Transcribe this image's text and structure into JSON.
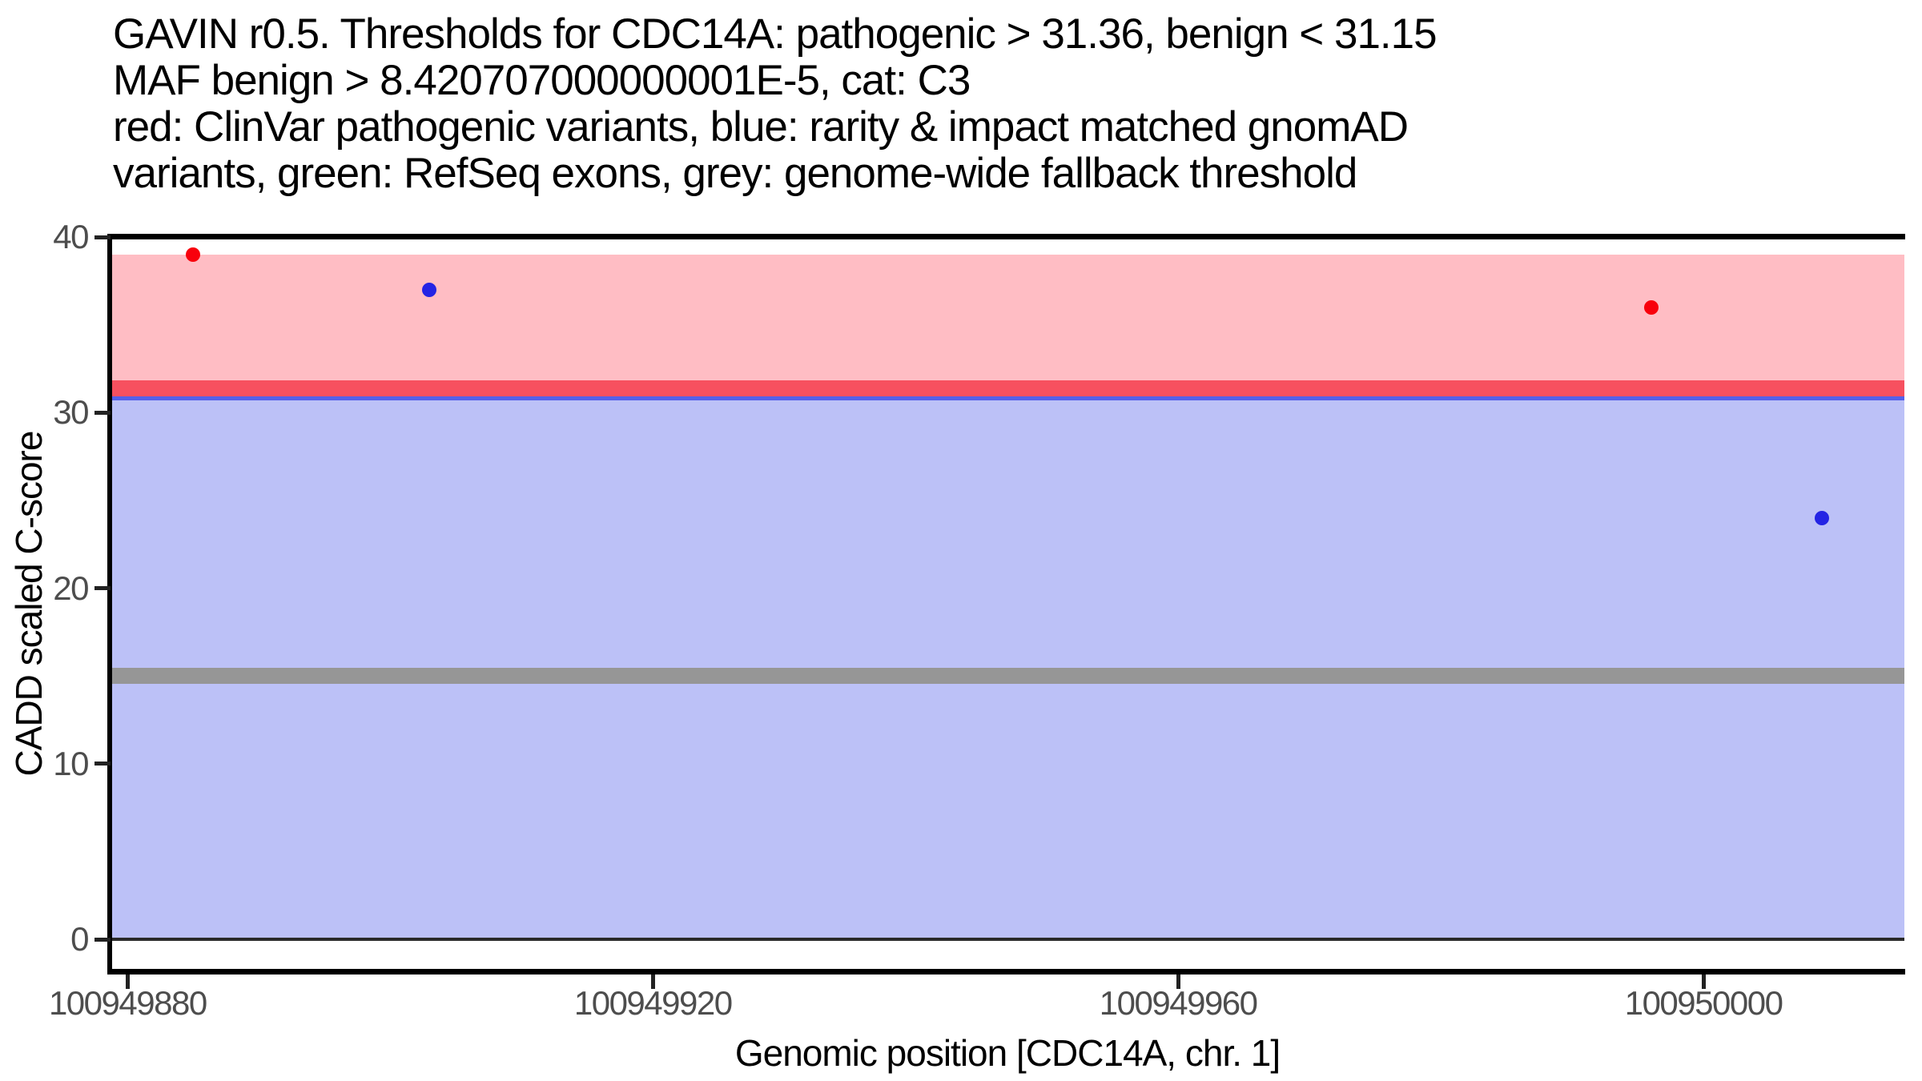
{
  "chart_data": {
    "type": "scatter",
    "title_lines": [
      "GAVIN r0.5. Thresholds for CDC14A: pathogenic > 31.36, benign < 31.15",
      "MAF benign > 8.420707000000001E-5, cat: C3",
      "red: ClinVar pathogenic variants, blue: rarity & impact matched gnomAD",
      "variants, green: RefSeq exons, grey: genome-wide fallback threshold"
    ],
    "xlabel": "Genomic position [CDC14A, chr. 1]",
    "ylabel": "CADD scaled C-score",
    "xlim": [
      100949878.7,
      100950015.3
    ],
    "ylim": [
      -1.82,
      40.0
    ],
    "x_ticks": [
      100949880,
      100949920,
      100949960,
      100950000
    ],
    "y_ticks": [
      0,
      10,
      20,
      30,
      40
    ],
    "grid": false,
    "legend": "none",
    "thresholds": {
      "pathogenic_gt": 31.36,
      "benign_lt": 31.15,
      "maf_benign_gt": "8.420707000000001E-5",
      "category": "C3",
      "genome_wide_fallback": 15
    },
    "regions": [
      {
        "name": "benign-region",
        "from": 0,
        "to": 31.15,
        "color": "#BCC1F7"
      },
      {
        "name": "pathogenic-region",
        "from": 31.36,
        "to": 39,
        "color": "#FFBDC4"
      }
    ],
    "hlines": [
      {
        "name": "benign-threshold-line",
        "y": 31.15,
        "color": "#5560E8",
        "thickness": 20
      },
      {
        "name": "pathogenic-threshold-line",
        "y": 31.36,
        "color": "#F7505F",
        "thickness": 20
      },
      {
        "name": "fallback-threshold-line",
        "y": 15,
        "color": "#969696",
        "thickness": 20
      },
      {
        "name": "zero-line",
        "y": 0,
        "color": "#2A2A2A",
        "thickness": 4
      }
    ],
    "point_radius": 9,
    "series": [
      {
        "name": "ClinVar pathogenic variants",
        "color": "#F8000C",
        "points": [
          {
            "x": 100949885,
            "y": 39
          },
          {
            "x": 100949996,
            "y": 36
          }
        ]
      },
      {
        "name": "rarity & impact matched gnomAD variants",
        "color": "#2424E4",
        "points": [
          {
            "x": 100949903,
            "y": 37
          },
          {
            "x": 100950009,
            "y": 24
          }
        ]
      }
    ]
  }
}
